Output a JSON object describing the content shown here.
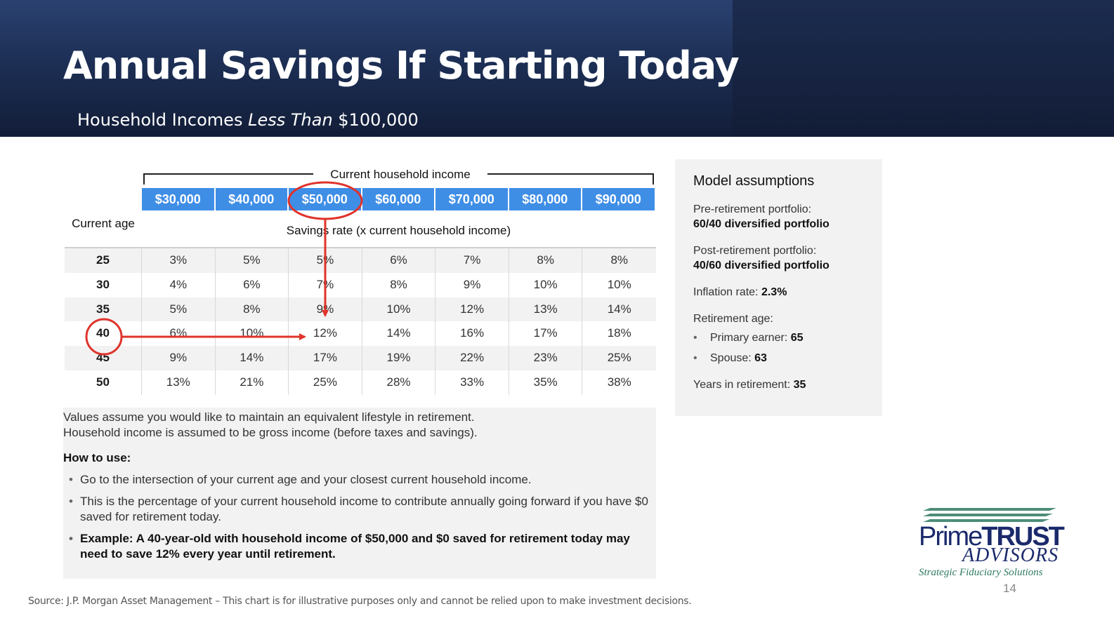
{
  "header": {
    "title": "Annual Savings If Starting Today",
    "subtitle_prefix": "Household Incomes ",
    "subtitle_emph": "Less Than",
    "subtitle_suffix": " $100,000"
  },
  "table": {
    "group_label": "Current household income",
    "incomes": [
      "$30,000",
      "$40,000",
      "$50,000",
      "$60,000",
      "$70,000",
      "$80,000",
      "$90,000"
    ],
    "age_header": "Current age",
    "rate_header": "Savings rate (x current household income)",
    "rows": [
      {
        "age": "25",
        "values": [
          "3%",
          "5%",
          "5%",
          "6%",
          "7%",
          "8%",
          "8%"
        ]
      },
      {
        "age": "30",
        "values": [
          "4%",
          "6%",
          "7%",
          "8%",
          "9%",
          "10%",
          "10%"
        ]
      },
      {
        "age": "35",
        "values": [
          "5%",
          "8%",
          "9%",
          "10%",
          "12%",
          "13%",
          "14%"
        ]
      },
      {
        "age": "40",
        "values": [
          "6%",
          "10%",
          "12%",
          "14%",
          "16%",
          "17%",
          "18%"
        ]
      },
      {
        "age": "45",
        "values": [
          "9%",
          "14%",
          "17%",
          "19%",
          "22%",
          "23%",
          "25%"
        ]
      },
      {
        "age": "50",
        "values": [
          "13%",
          "21%",
          "25%",
          "28%",
          "33%",
          "35%",
          "38%"
        ]
      }
    ],
    "highlight": {
      "income": "$50,000",
      "age": "40",
      "value": "12%",
      "annotation_color": "#e0332a"
    }
  },
  "notes": {
    "line1": "Values assume you would like to maintain an equivalent lifestyle in retirement.",
    "line2": "Household income is assumed to be gross income (before taxes and savings).",
    "how_label": "How to use:",
    "bullets": [
      "Go to the intersection of your current age and your closest current household income.",
      "This is the percentage of your current household income to contribute annually going forward if you have $0 saved for retirement today.",
      "Example: A 40-year-old with household income of $50,000 and $0 saved for retirement today may need to save 12% every year until retirement."
    ]
  },
  "assumptions": {
    "title": "Model assumptions",
    "pre_label": "Pre-retirement portfolio:",
    "pre_value": "60/40 diversified portfolio",
    "post_label": "Post-retirement portfolio:",
    "post_value": "40/60 diversified portfolio",
    "inflation_label": "Inflation rate: ",
    "inflation_value": "2.3%",
    "ret_age_label": "Retirement age:",
    "primary_label": "Primary earner: ",
    "primary_value": "65",
    "spouse_label": "Spouse: ",
    "spouse_value": "63",
    "years_label": "Years in retirement: ",
    "years_value": "35"
  },
  "footer": {
    "source": "Source: J.P. Morgan Asset Management – This chart is for illustrative purposes only and cannot be relied upon to make investment decisions.",
    "page_number": "14"
  },
  "logo": {
    "prime": "Prime",
    "trust": "TRUST",
    "advisors": "ADVISORS",
    "tagline": "Strategic Fiduciary Solutions"
  },
  "colors": {
    "header_dark": "#1d2f55",
    "income_blue": "#3f8ee6",
    "annotation_red": "#e0332a",
    "logo_navy": "#1b2a6b",
    "logo_green": "#2f7a62"
  }
}
